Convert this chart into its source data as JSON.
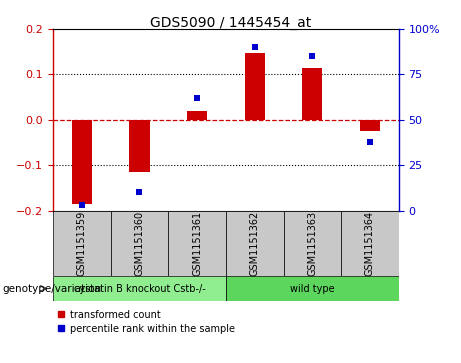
{
  "title": "GDS5090 / 1445454_at",
  "samples": [
    "GSM1151359",
    "GSM1151360",
    "GSM1151361",
    "GSM1151362",
    "GSM1151363",
    "GSM1151364"
  ],
  "red_values": [
    -0.185,
    -0.115,
    0.02,
    0.148,
    0.115,
    -0.025
  ],
  "blue_values": [
    3,
    10,
    62,
    90,
    85,
    38
  ],
  "groups": [
    {
      "label": "cystatin B knockout Cstb-/-",
      "samples_idx": [
        0,
        1,
        2
      ],
      "color": "#90EE90"
    },
    {
      "label": "wild type",
      "samples_idx": [
        3,
        4,
        5
      ],
      "color": "#5CD65C"
    }
  ],
  "genotype_label": "genotype/variation",
  "legend_red": "transformed count",
  "legend_blue": "percentile rank within the sample",
  "ylim_left": [
    -0.2,
    0.2
  ],
  "ylim_right": [
    0,
    100
  ],
  "yticks_left": [
    -0.2,
    -0.1,
    0,
    0.1,
    0.2
  ],
  "yticks_right": [
    0,
    25,
    50,
    75,
    100
  ],
  "yticklabels_right": [
    "0",
    "25",
    "50",
    "75",
    "100%"
  ],
  "red_color": "#CC0000",
  "blue_color": "#0000CC",
  "plot_bg": "#FFFFFF",
  "bar_width": 0.35,
  "marker_size": 5,
  "sample_bg": "#C8C8C8",
  "title_fontsize": 10,
  "tick_fontsize": 8,
  "label_fontsize": 7,
  "legend_fontsize": 7
}
